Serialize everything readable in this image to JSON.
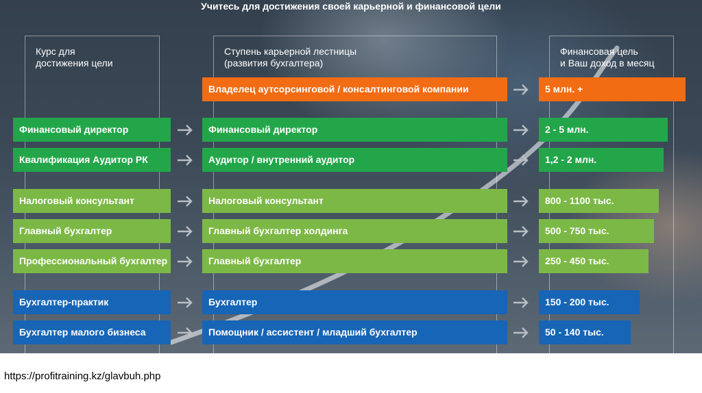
{
  "title": "Учитесь для достижения своей карьерной и финансовой цели",
  "columns": {
    "course": {
      "line1": "Курс для",
      "line2": "достижения цели"
    },
    "career": {
      "line1": "Ступень карьерной лестницы",
      "line2": "(развития бухгалтера)"
    },
    "income": {
      "line1": "Финансовая цель",
      "line2": "и Ваш доход в месяц"
    }
  },
  "rows": [
    {
      "course": "",
      "career": "Владелец аутсорсинговой / консалтинговой компании",
      "income": "5 млн. +",
      "level": "orange"
    },
    {
      "course": "Финансовый директор",
      "career": "Финансовый директор",
      "income": "2 - 5 млн.",
      "level": "green"
    },
    {
      "course": "Квалификация Аудитор РК",
      "career": "Аудитор / внутренний аудитор",
      "income": "1,2 - 2 млн.",
      "level": "green"
    },
    {
      "course": "Налоговый консультант",
      "career": "Налоговый консультант",
      "income": "800 - 1100 тыс.",
      "level": "light-green"
    },
    {
      "course": "Главный бухгалтер",
      "career": "Главный бухгалтер холдинга",
      "income": "500 - 750 тыс.",
      "level": "light-green"
    },
    {
      "course": "Профессиональный бухгалтер",
      "career": "Главный бухгалтер",
      "income": "250 - 450 тыс.",
      "level": "light-green"
    },
    {
      "course": "Бухгалтер-практик",
      "career": "Бухгалтер",
      "income": "150 - 200 тыс.",
      "level": "blue"
    },
    {
      "course": "Бухгалтер малого бизнеса",
      "career": "Помощник / ассистент / младший бухгалтер",
      "income": "50 - 140 тыс.",
      "level": "blue"
    }
  ],
  "colors": {
    "orange": "#f26c13",
    "green": "#23a64a",
    "light_green": "#7cb846",
    "blue": "#1765b6"
  },
  "footer": {
    "url": "https://profitraining.kz/glavbuh.php"
  }
}
